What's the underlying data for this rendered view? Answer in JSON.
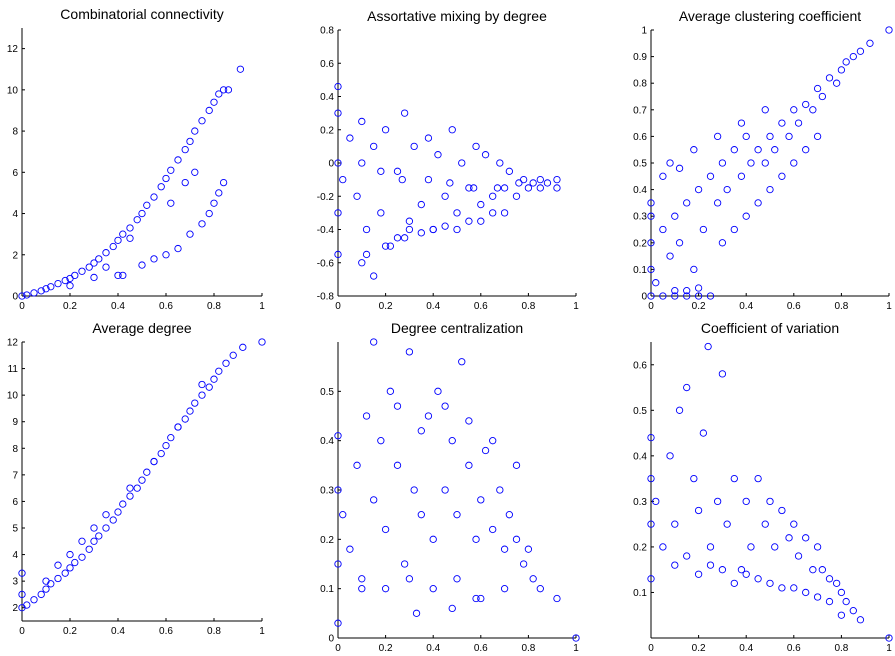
{
  "chart_data": [
    {
      "type": "scatter",
      "title": "Combinatorial connectivity",
      "xlim": [
        0,
        1
      ],
      "ylim": [
        0,
        13
      ],
      "xticks": [
        0,
        0.2,
        0.4,
        0.6,
        0.8,
        1
      ],
      "xtick_labels": [
        "0",
        "0.2",
        "0.4",
        "0.6",
        "0.8",
        "1"
      ],
      "yticks": [
        0,
        2,
        4,
        6,
        8,
        10,
        12
      ],
      "ytick_labels": [
        "0",
        "2",
        "4",
        "6",
        "8",
        "10",
        "12"
      ],
      "grid": false,
      "marker_color": "#0000ff",
      "series": [
        {
          "x": [
            0.0,
            0.02,
            0.05,
            0.08,
            0.1,
            0.12,
            0.15,
            0.18,
            0.2,
            0.22,
            0.25,
            0.28,
            0.3,
            0.32,
            0.35,
            0.38,
            0.4,
            0.42,
            0.45,
            0.48,
            0.5,
            0.52,
            0.55,
            0.58,
            0.6,
            0.62,
            0.65,
            0.68,
            0.7,
            0.72,
            0.75,
            0.78,
            0.8,
            0.82,
            0.84,
            0.86,
            0.91,
            0.2,
            0.3,
            0.4,
            0.42,
            0.5,
            0.55,
            0.6,
            0.65,
            0.7,
            0.75,
            0.78,
            0.8,
            0.82,
            0.84,
            0.62,
            0.68,
            0.72,
            0.45,
            0.35
          ],
          "y": [
            0.0,
            0.05,
            0.15,
            0.25,
            0.35,
            0.45,
            0.6,
            0.75,
            0.85,
            1.0,
            1.2,
            1.4,
            1.6,
            1.8,
            2.1,
            2.4,
            2.7,
            3.0,
            3.3,
            3.7,
            4.0,
            4.4,
            4.8,
            5.3,
            5.7,
            6.1,
            6.6,
            7.1,
            7.5,
            8.0,
            8.5,
            9.0,
            9.4,
            9.8,
            10.0,
            10.0,
            11.0,
            0.5,
            0.9,
            1.0,
            1.0,
            1.5,
            1.8,
            2.0,
            2.3,
            3.0,
            3.5,
            4.0,
            4.5,
            5.0,
            5.5,
            4.5,
            5.5,
            6.0,
            2.8,
            1.4
          ]
        }
      ]
    },
    {
      "type": "scatter",
      "title": "Assortative mixing by degree",
      "xlim": [
        0,
        1
      ],
      "ylim": [
        -0.8,
        0.8
      ],
      "xticks": [
        0,
        0.2,
        0.4,
        0.6,
        0.8,
        1
      ],
      "xtick_labels": [
        "0",
        "0.2",
        "0.4",
        "0.6",
        "0.8",
        "1"
      ],
      "yticks": [
        -0.8,
        -0.6,
        -0.4,
        -0.2,
        0,
        0.2,
        0.4,
        0.6,
        0.8
      ],
      "ytick_labels": [
        "-0.8",
        "-0.6",
        "-0.4",
        "-0.2",
        "0",
        "0.2",
        "0.4",
        "0.6",
        "0.8"
      ],
      "grid": false,
      "marker_color": "#0000ff",
      "series": [
        {
          "x": [
            0.0,
            0.0,
            0.0,
            0.0,
            0.0,
            0.02,
            0.05,
            0.08,
            0.1,
            0.12,
            0.15,
            0.18,
            0.2,
            0.22,
            0.25,
            0.28,
            0.3,
            0.32,
            0.35,
            0.38,
            0.4,
            0.42,
            0.45,
            0.48,
            0.5,
            0.52,
            0.55,
            0.58,
            0.6,
            0.62,
            0.65,
            0.68,
            0.7,
            0.72,
            0.75,
            0.78,
            0.8,
            0.82,
            0.85,
            0.88,
            0.92,
            0.92,
            0.1,
            0.15,
            0.12,
            0.2,
            0.25,
            0.28,
            0.3,
            0.35,
            0.4,
            0.45,
            0.5,
            0.55,
            0.6,
            0.65,
            0.7,
            0.1,
            0.18,
            0.27,
            0.38,
            0.47,
            0.57,
            0.67,
            0.76,
            0.85
          ],
          "y": [
            0.46,
            0.3,
            0.0,
            -0.3,
            -0.55,
            -0.1,
            0.15,
            -0.2,
            0.25,
            -0.4,
            0.1,
            -0.3,
            0.2,
            -0.5,
            -0.05,
            0.3,
            -0.35,
            0.1,
            -0.25,
            0.15,
            -0.4,
            0.05,
            -0.2,
            0.2,
            -0.3,
            0.0,
            -0.15,
            0.1,
            -0.25,
            0.05,
            -0.2,
            0.0,
            -0.15,
            -0.05,
            -0.2,
            -0.1,
            -0.15,
            -0.12,
            -0.1,
            -0.12,
            -0.15,
            -0.1,
            -0.6,
            -0.68,
            -0.55,
            -0.5,
            -0.45,
            -0.45,
            -0.4,
            -0.42,
            -0.4,
            -0.38,
            -0.4,
            -0.35,
            -0.35,
            -0.3,
            -0.3,
            0.0,
            -0.05,
            -0.1,
            -0.1,
            -0.12,
            -0.15,
            -0.15,
            -0.12,
            -0.15
          ]
        }
      ]
    },
    {
      "type": "scatter",
      "title": "Average clustering coefficient",
      "xlim": [
        0,
        1
      ],
      "ylim": [
        0,
        1
      ],
      "xticks": [
        0,
        0.2,
        0.4,
        0.6,
        0.8,
        1
      ],
      "xtick_labels": [
        "0",
        "0.2",
        "0.4",
        "0.6",
        "0.8",
        "1"
      ],
      "yticks": [
        0,
        0.1,
        0.2,
        0.3,
        0.4,
        0.5,
        0.6,
        0.7,
        0.8,
        0.9,
        1
      ],
      "ytick_labels": [
        "0",
        "0.1",
        "0.2",
        "0.3",
        "0.4",
        "0.5",
        "0.6",
        "0.7",
        "0.8",
        "0.9",
        "1"
      ],
      "grid": false,
      "marker_color": "#0000ff",
      "series": [
        {
          "x": [
            0.0,
            0.0,
            0.0,
            0.0,
            0.0,
            0.02,
            0.05,
            0.08,
            0.1,
            0.12,
            0.15,
            0.18,
            0.2,
            0.22,
            0.25,
            0.28,
            0.3,
            0.32,
            0.35,
            0.38,
            0.4,
            0.42,
            0.45,
            0.48,
            0.5,
            0.52,
            0.55,
            0.58,
            0.6,
            0.62,
            0.65,
            0.68,
            0.7,
            0.72,
            0.75,
            0.78,
            0.8,
            0.82,
            0.85,
            0.88,
            0.92,
            1.0,
            0.05,
            0.1,
            0.15,
            0.2,
            0.25,
            0.1,
            0.15,
            0.2,
            0.3,
            0.35,
            0.4,
            0.45,
            0.5,
            0.55,
            0.6,
            0.65,
            0.7,
            0.05,
            0.08,
            0.12,
            0.18,
            0.28,
            0.38,
            0.48
          ],
          "y": [
            0.0,
            0.1,
            0.2,
            0.3,
            0.35,
            0.05,
            0.25,
            0.15,
            0.3,
            0.2,
            0.35,
            0.1,
            0.4,
            0.25,
            0.45,
            0.35,
            0.5,
            0.4,
            0.55,
            0.45,
            0.6,
            0.5,
            0.55,
            0.5,
            0.6,
            0.55,
            0.65,
            0.6,
            0.7,
            0.65,
            0.72,
            0.7,
            0.78,
            0.75,
            0.82,
            0.8,
            0.85,
            0.88,
            0.9,
            0.92,
            0.95,
            1.0,
            0.0,
            0.0,
            0.0,
            0.0,
            0.0,
            0.02,
            0.02,
            0.03,
            0.2,
            0.25,
            0.3,
            0.35,
            0.4,
            0.45,
            0.5,
            0.55,
            0.6,
            0.45,
            0.5,
            0.48,
            0.55,
            0.6,
            0.65,
            0.7
          ]
        }
      ]
    },
    {
      "type": "scatter",
      "title": "Average degree",
      "xlim": [
        0,
        1
      ],
      "ylim": [
        1.5,
        12
      ],
      "xticks": [
        0,
        0.2,
        0.4,
        0.6,
        0.8,
        1
      ],
      "xtick_labels": [
        "0",
        "0.2",
        "0.4",
        "0.6",
        "0.8",
        "1"
      ],
      "yticks": [
        2,
        3,
        4,
        5,
        6,
        7,
        8,
        9,
        10,
        11,
        12
      ],
      "ytick_labels": [
        "2",
        "3",
        "4",
        "5",
        "6",
        "7",
        "8",
        "9",
        "10",
        "11",
        "12"
      ],
      "grid": false,
      "marker_color": "#0000ff",
      "series": [
        {
          "x": [
            0.0,
            0.0,
            0.0,
            0.02,
            0.05,
            0.08,
            0.1,
            0.12,
            0.15,
            0.18,
            0.2,
            0.22,
            0.25,
            0.28,
            0.3,
            0.32,
            0.35,
            0.38,
            0.4,
            0.42,
            0.45,
            0.48,
            0.5,
            0.52,
            0.55,
            0.58,
            0.6,
            0.62,
            0.65,
            0.68,
            0.7,
            0.72,
            0.75,
            0.78,
            0.8,
            0.82,
            0.85,
            0.88,
            0.92,
            1.0,
            0.1,
            0.15,
            0.2,
            0.25,
            0.3,
            0.35,
            0.45,
            0.55,
            0.65,
            0.75
          ],
          "y": [
            2.0,
            2.5,
            3.3,
            2.1,
            2.3,
            2.5,
            2.7,
            2.9,
            3.1,
            3.3,
            3.5,
            3.7,
            3.9,
            4.2,
            4.5,
            4.7,
            5.0,
            5.3,
            5.6,
            5.9,
            6.2,
            6.5,
            6.8,
            7.1,
            7.5,
            7.8,
            8.1,
            8.4,
            8.8,
            9.1,
            9.4,
            9.7,
            10.0,
            10.3,
            10.6,
            10.9,
            11.2,
            11.5,
            11.8,
            12.0,
            3.0,
            3.6,
            4.0,
            4.5,
            5.0,
            5.5,
            6.5,
            7.5,
            8.8,
            10.4
          ]
        }
      ]
    },
    {
      "type": "scatter",
      "title": "Degree centralization",
      "xlim": [
        0,
        1
      ],
      "ylim": [
        0,
        0.6
      ],
      "xticks": [
        0,
        0.2,
        0.4,
        0.6,
        0.8,
        1
      ],
      "xtick_labels": [
        "0",
        "0.2",
        "0.4",
        "0.6",
        "0.8",
        "1"
      ],
      "yticks": [
        0,
        0.1,
        0.2,
        0.3,
        0.4,
        0.5
      ],
      "ytick_labels": [
        "0",
        "0.1",
        "0.2",
        "0.3",
        "0.4",
        "0.5"
      ],
      "grid": false,
      "marker_color": "#0000ff",
      "series": [
        {
          "x": [
            0.0,
            0.0,
            0.0,
            0.0,
            0.02,
            0.05,
            0.08,
            0.1,
            0.12,
            0.15,
            0.15,
            0.18,
            0.2,
            0.22,
            0.25,
            0.28,
            0.3,
            0.32,
            0.35,
            0.38,
            0.4,
            0.42,
            0.45,
            0.48,
            0.5,
            0.52,
            0.55,
            0.58,
            0.6,
            0.62,
            0.65,
            0.68,
            0.7,
            0.72,
            0.75,
            0.78,
            0.8,
            0.82,
            0.85,
            0.92,
            1.0,
            0.1,
            0.2,
            0.3,
            0.4,
            0.5,
            0.6,
            0.7,
            0.25,
            0.35,
            0.45,
            0.55,
            0.65,
            0.75,
            0.33,
            0.48,
            0.58
          ],
          "y": [
            0.03,
            0.15,
            0.3,
            0.41,
            0.25,
            0.18,
            0.35,
            0.1,
            0.45,
            0.6,
            0.28,
            0.4,
            0.22,
            0.5,
            0.35,
            0.15,
            0.58,
            0.3,
            0.25,
            0.45,
            0.2,
            0.5,
            0.3,
            0.4,
            0.25,
            0.56,
            0.35,
            0.2,
            0.28,
            0.38,
            0.22,
            0.3,
            0.18,
            0.25,
            0.2,
            0.15,
            0.18,
            0.12,
            0.1,
            0.08,
            0.0,
            0.12,
            0.1,
            0.12,
            0.1,
            0.12,
            0.08,
            0.1,
            0.47,
            0.42,
            0.47,
            0.44,
            0.4,
            0.35,
            0.05,
            0.06,
            0.08
          ]
        }
      ]
    },
    {
      "type": "scatter",
      "title": "Coefficient of variation",
      "xlim": [
        0,
        1
      ],
      "ylim": [
        0,
        0.65
      ],
      "xticks": [
        0,
        0.2,
        0.4,
        0.6,
        0.8,
        1
      ],
      "xtick_labels": [
        "0",
        "0.2",
        "0.4",
        "0.6",
        "0.8",
        "1"
      ],
      "yticks": [
        0.1,
        0.2,
        0.3,
        0.4,
        0.5,
        0.6
      ],
      "ytick_labels": [
        "0.1",
        "0.2",
        "0.3",
        "0.4",
        "0.5",
        "0.6"
      ],
      "grid": false,
      "marker_color": "#0000ff",
      "series": [
        {
          "x": [
            0.0,
            0.0,
            0.0,
            0.0,
            0.02,
            0.05,
            0.08,
            0.1,
            0.12,
            0.15,
            0.18,
            0.2,
            0.22,
            0.24,
            0.25,
            0.28,
            0.3,
            0.32,
            0.35,
            0.38,
            0.4,
            0.42,
            0.45,
            0.48,
            0.5,
            0.52,
            0.55,
            0.58,
            0.6,
            0.62,
            0.65,
            0.68,
            0.7,
            0.72,
            0.75,
            0.78,
            0.8,
            0.82,
            0.85,
            0.88,
            1.0,
            0.1,
            0.15,
            0.2,
            0.25,
            0.3,
            0.35,
            0.4,
            0.45,
            0.5,
            0.55,
            0.6,
            0.65,
            0.7,
            0.75,
            0.8
          ],
          "y": [
            0.13,
            0.25,
            0.35,
            0.44,
            0.3,
            0.2,
            0.4,
            0.25,
            0.5,
            0.55,
            0.35,
            0.28,
            0.45,
            0.64,
            0.2,
            0.3,
            0.58,
            0.25,
            0.35,
            0.15,
            0.3,
            0.2,
            0.35,
            0.25,
            0.3,
            0.2,
            0.28,
            0.22,
            0.25,
            0.18,
            0.22,
            0.15,
            0.2,
            0.15,
            0.13,
            0.12,
            0.1,
            0.08,
            0.06,
            0.04,
            0.0,
            0.16,
            0.18,
            0.14,
            0.16,
            0.15,
            0.12,
            0.14,
            0.13,
            0.12,
            0.11,
            0.11,
            0.1,
            0.09,
            0.08,
            0.05
          ]
        }
      ]
    }
  ]
}
